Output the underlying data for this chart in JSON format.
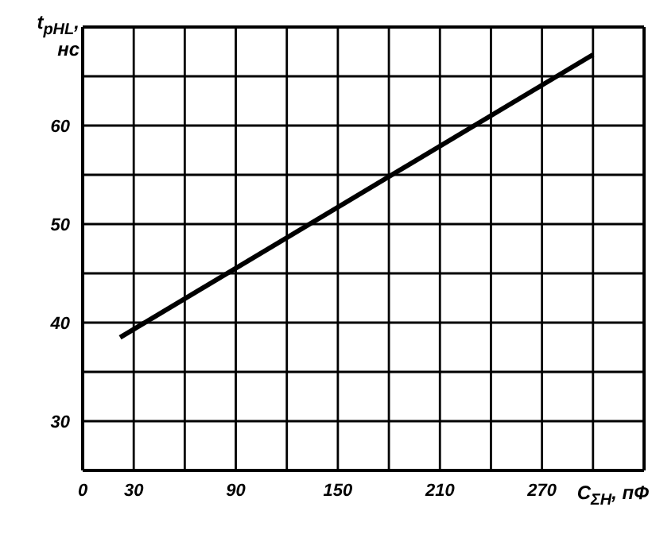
{
  "chart_data": {
    "type": "line",
    "xlabel": "C$_{ΣН}$, пФ",
    "ylabel": "t$_{pHL}$, нс",
    "x": [
      22,
      300
    ],
    "series": [
      {
        "color": "#000000",
        "values": [
          38.5,
          67.2
        ]
      }
    ],
    "xlim": [
      0,
      330
    ],
    "xticks": [
      0,
      30,
      {
        "value": 60,
        "label": null
      },
      90,
      {
        "value": 120,
        "label": null
      },
      150,
      {
        "value": 180,
        "label": null
      },
      210,
      {
        "value": 240,
        "label": null
      },
      270,
      {
        "value": 300,
        "label": null
      }
    ],
    "ylim": [
      25,
      70
    ],
    "yticks": [
      30,
      {
        "value": 35,
        "label": null
      },
      40,
      {
        "value": 45,
        "label": null
      },
      50,
      {
        "value": 55,
        "label": null
      },
      60,
      {
        "value": 65,
        "label": null
      }
    ],
    "grid": true,
    "legend": false,
    "marker": "none",
    "line_style": "solid"
  }
}
